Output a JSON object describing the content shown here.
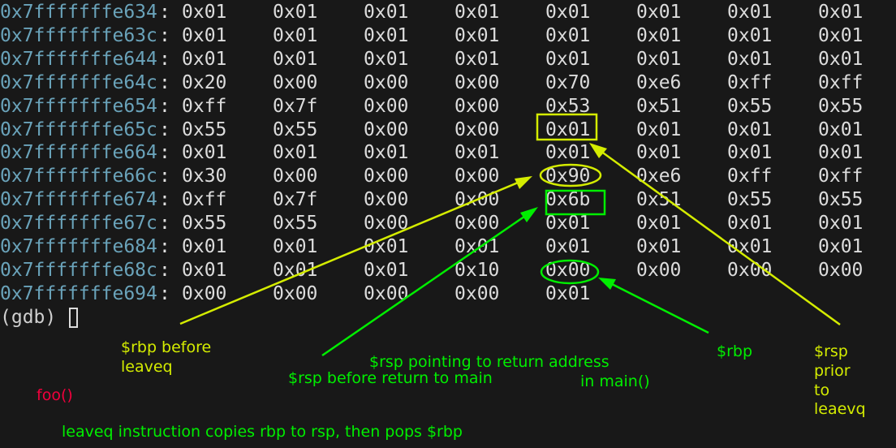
{
  "memory_dump": [
    {
      "address": "0x7fffffffe634",
      "bytes": [
        "0x01",
        "0x01",
        "0x01",
        "0x01",
        "0x01",
        "0x01",
        "0x01",
        "0x01"
      ]
    },
    {
      "address": "0x7fffffffe63c",
      "bytes": [
        "0x01",
        "0x01",
        "0x01",
        "0x01",
        "0x01",
        "0x01",
        "0x01",
        "0x01"
      ]
    },
    {
      "address": "0x7fffffffe644",
      "bytes": [
        "0x01",
        "0x01",
        "0x01",
        "0x01",
        "0x01",
        "0x01",
        "0x01",
        "0x01"
      ]
    },
    {
      "address": "0x7fffffffe64c",
      "bytes": [
        "0x20",
        "0x00",
        "0x00",
        "0x00",
        "0x70",
        "0xe6",
        "0xff",
        "0xff"
      ]
    },
    {
      "address": "0x7fffffffe654",
      "bytes": [
        "0xff",
        "0x7f",
        "0x00",
        "0x00",
        "0x53",
        "0x51",
        "0x55",
        "0x55"
      ]
    },
    {
      "address": "0x7fffffffe65c",
      "bytes": [
        "0x55",
        "0x55",
        "0x00",
        "0x00",
        "0x01",
        "0x01",
        "0x01",
        "0x01"
      ]
    },
    {
      "address": "0x7fffffffe664",
      "bytes": [
        "0x01",
        "0x01",
        "0x01",
        "0x01",
        "0x01",
        "0x01",
        "0x01",
        "0x01"
      ]
    },
    {
      "address": "0x7fffffffe66c",
      "bytes": [
        "0x30",
        "0x00",
        "0x00",
        "0x00",
        "0x90",
        "0xe6",
        "0xff",
        "0xff"
      ]
    },
    {
      "address": "0x7fffffffe674",
      "bytes": [
        "0xff",
        "0x7f",
        "0x00",
        "0x00",
        "0x6b",
        "0x51",
        "0x55",
        "0x55"
      ]
    },
    {
      "address": "0x7fffffffe67c",
      "bytes": [
        "0x55",
        "0x55",
        "0x00",
        "0x00",
        "0x01",
        "0x01",
        "0x01",
        "0x01"
      ]
    },
    {
      "address": "0x7fffffffe684",
      "bytes": [
        "0x01",
        "0x01",
        "0x01",
        "0x01",
        "0x01",
        "0x01",
        "0x01",
        "0x01"
      ]
    },
    {
      "address": "0x7fffffffe68c",
      "bytes": [
        "0x01",
        "0x01",
        "0x01",
        "0x10",
        "0x00",
        "0x00",
        "0x00",
        "0x00"
      ]
    },
    {
      "address": "0x7fffffffe694",
      "bytes": [
        "0x00",
        "0x00",
        "0x00",
        "0x00",
        "0x01"
      ]
    }
  ],
  "prompt": "(gdb)",
  "annotations": {
    "rbp_before_leaveq": [
      "$rbp before",
      "leaveq"
    ],
    "rsp_before_return": "$rsp before return to main",
    "rsp_pointing": "$rsp pointing to return address",
    "in_main": "in main()",
    "rbp": "$rbp",
    "rsp_prior": [
      "$rsp",
      "prior",
      "to",
      "leaevq"
    ],
    "foo": "foo()",
    "leaveq_note": "leaveq instruction copies rbp to rsp, then pops $rbp"
  },
  "colors": {
    "yellow": "#d4ec00",
    "green": "#00ee00",
    "red": "#f0003c",
    "address": "#6aa3ba",
    "background": "#181818"
  }
}
